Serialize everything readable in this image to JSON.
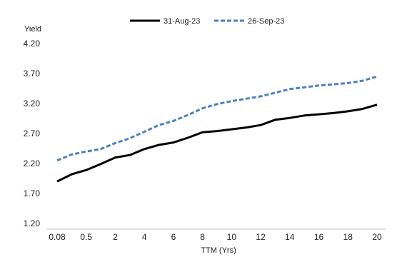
{
  "chart_data": {
    "type": "line",
    "ylabel": "Yield",
    "xlabel": "TTM (Yrs)",
    "ylim": [
      1.2,
      4.2
    ],
    "y_ticks": [
      "1.20",
      "1.70",
      "2.20",
      "2.70",
      "3.20",
      "3.70",
      "4.20"
    ],
    "y_tick_values": [
      1.2,
      1.7,
      2.2,
      2.7,
      3.2,
      3.7,
      4.2
    ],
    "x": [
      "0.08",
      "0.25",
      "0.5",
      "1",
      "2",
      "3",
      "4",
      "5",
      "6",
      "7",
      "8",
      "9",
      "10",
      "11",
      "12",
      "13",
      "14",
      "15",
      "16",
      "17",
      "18",
      "19",
      "20"
    ],
    "x_tick_labels": [
      "0.08",
      "0.5",
      "2",
      "4",
      "6",
      "8",
      "10",
      "12",
      "14",
      "16",
      "18",
      "20"
    ],
    "grid": false,
    "legend_position": "top",
    "series": [
      {
        "name": "31-Aug-23",
        "color": "#000000",
        "style": "solid",
        "values": [
          1.9,
          2.02,
          2.09,
          2.19,
          2.3,
          2.34,
          2.44,
          2.51,
          2.55,
          2.63,
          2.72,
          2.74,
          2.77,
          2.8,
          2.84,
          2.93,
          2.96,
          3.0,
          3.02,
          3.04,
          3.07,
          3.11,
          3.18
        ]
      },
      {
        "name": "26-Sep-23",
        "color": "#4F81BD",
        "style": "dashed",
        "values": [
          2.25,
          2.35,
          2.4,
          2.44,
          2.54,
          2.62,
          2.73,
          2.84,
          2.91,
          3.01,
          3.12,
          3.19,
          3.24,
          3.28,
          3.32,
          3.38,
          3.44,
          3.47,
          3.5,
          3.52,
          3.54,
          3.58,
          3.65
        ]
      }
    ]
  }
}
